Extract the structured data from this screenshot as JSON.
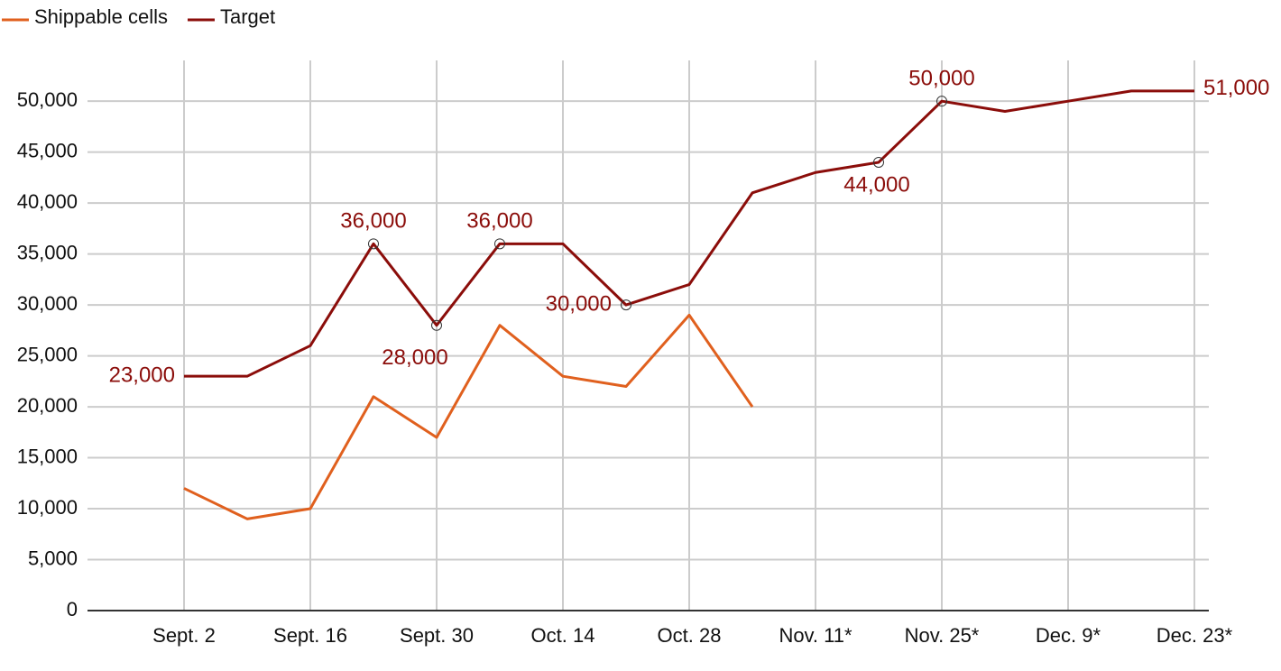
{
  "chart_data": {
    "type": "line",
    "categories": [
      "Sept. 2",
      null,
      "Sept. 16",
      null,
      "Sept. 30",
      null,
      "Oct. 14",
      null,
      "Oct. 28",
      null,
      "Nov. 11*",
      null,
      "Nov. 25*",
      null,
      "Dec. 9*",
      null,
      "Dec. 23*"
    ],
    "series": [
      {
        "name": "Shippable cells",
        "color": "#e0601e",
        "values": [
          12000,
          9000,
          10000,
          21000,
          17000,
          28000,
          23000,
          22000,
          29000,
          20000,
          null,
          null,
          null,
          null,
          null,
          null,
          null
        ]
      },
      {
        "name": "Target",
        "color": "#8b0d0a",
        "values": [
          23000,
          23000,
          26000,
          36000,
          28000,
          36000,
          36000,
          30000,
          32000,
          41000,
          43000,
          44000,
          50000,
          49000,
          50000,
          51000,
          51000
        ],
        "value_labels": [
          "23,000",
          null,
          null,
          "36,000",
          "28,000",
          "36,000",
          null,
          "30,000",
          null,
          null,
          null,
          "44,000",
          "50,000",
          null,
          null,
          null,
          "51,000"
        ]
      }
    ],
    "ylim": [
      0,
      54000
    ],
    "yticks": [
      0,
      {
        "value": 5000,
        "label": "5,000"
      },
      {
        "value": 10000,
        "label": "10,000"
      },
      {
        "value": 15000,
        "label": "15,000"
      },
      {
        "value": 20000,
        "label": "20,000"
      },
      {
        "value": 25000,
        "label": "25,000"
      },
      {
        "value": 30000,
        "label": "30,000"
      },
      {
        "value": 35000,
        "label": "35,000"
      },
      {
        "value": 40000,
        "label": "40,000"
      },
      {
        "value": 45000,
        "label": "45,000"
      },
      {
        "value": 50000,
        "label": "50,000"
      }
    ],
    "grid": true,
    "legend": "top-left"
  }
}
